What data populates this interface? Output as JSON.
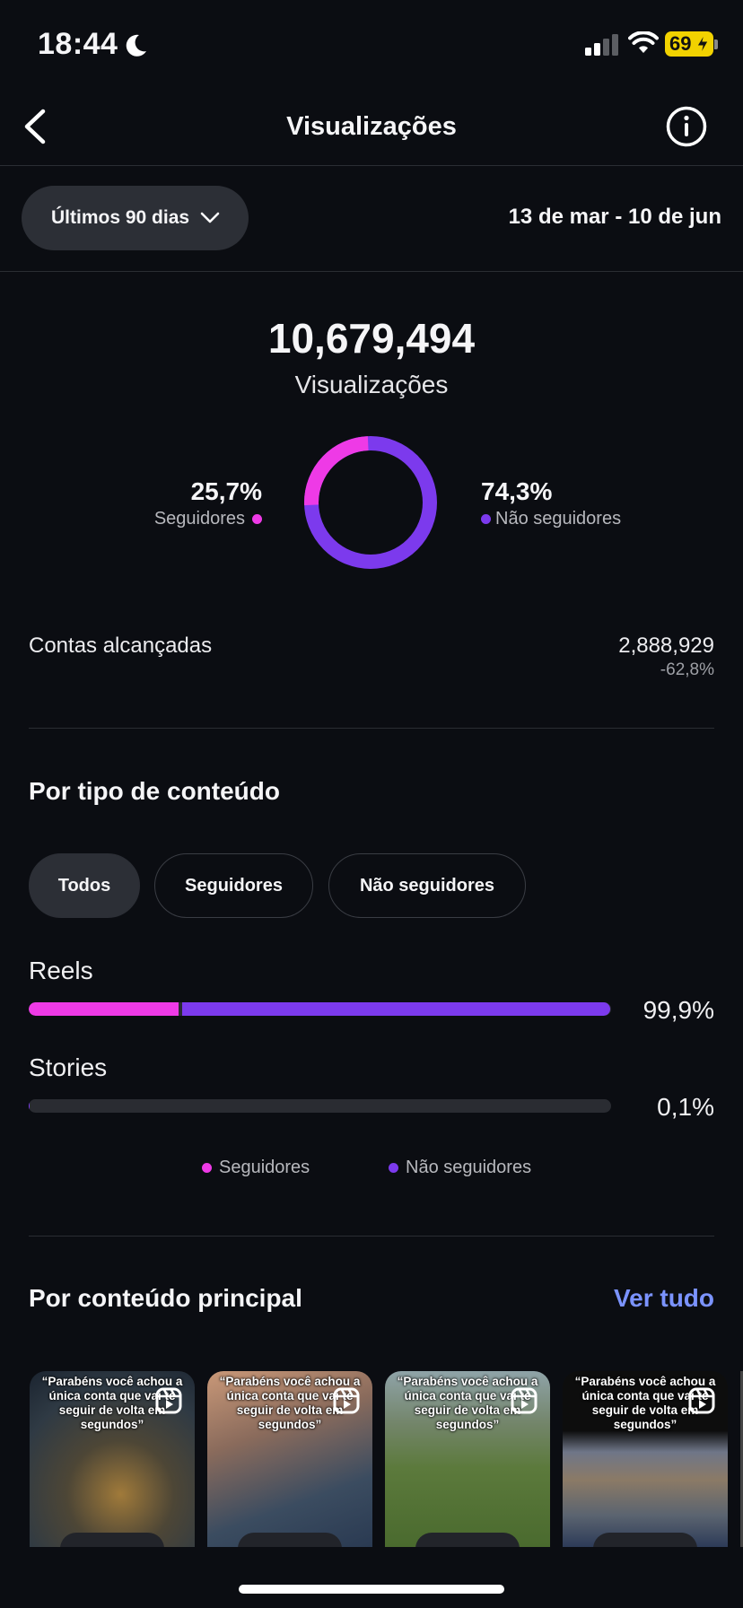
{
  "status_bar": {
    "time": "18:44",
    "battery": "69"
  },
  "header": {
    "title": "Visualizações"
  },
  "range": {
    "selector_label": "Últimos 90 dias",
    "date_range": "13 de mar - 10 de jun"
  },
  "summary": {
    "total": "10,679,494",
    "total_label": "Visualizações",
    "followers_pct": "25,7%",
    "followers_label": "Seguidores",
    "non_followers_pct": "74,3%",
    "non_followers_label": "Não seguidores",
    "followers_fraction": 0.257,
    "colors": {
      "followers": "#ee3ae6",
      "non_followers": "#7c3aed"
    }
  },
  "reach": {
    "label": "Contas alcançadas",
    "value": "2,888,929",
    "change": "-62,8%"
  },
  "content_type": {
    "title": "Por tipo de conteúdo",
    "tabs": [
      "Todos",
      "Seguidores",
      "Não seguidores"
    ],
    "active_tab": "Todos",
    "rows": [
      {
        "label": "Reels",
        "pct": "99,9%",
        "followers_fraction": 0.257,
        "total_fraction": 0.999
      },
      {
        "label": "Stories",
        "pct": "0,1%",
        "followers_fraction": 0.0,
        "total_fraction": 0.001
      }
    ],
    "legend": {
      "followers": "Seguidores",
      "non_followers": "Não seguidores"
    }
  },
  "top_content": {
    "title": "Por conteúdo principal",
    "see_all": "Ver tudo",
    "items": [
      {
        "caption": "“Parabéns você achou a única conta que vai te seguir de volta em segundos”"
      },
      {
        "caption": "“Parabéns você achou a única conta que vai te seguir de volta em segundos”"
      },
      {
        "caption": "“Parabéns você achou a única conta que vai te seguir de volta em segundos”"
      },
      {
        "caption": "“Parabéns você achou a única conta que vai te seguir de volta em segundos”"
      }
    ]
  }
}
